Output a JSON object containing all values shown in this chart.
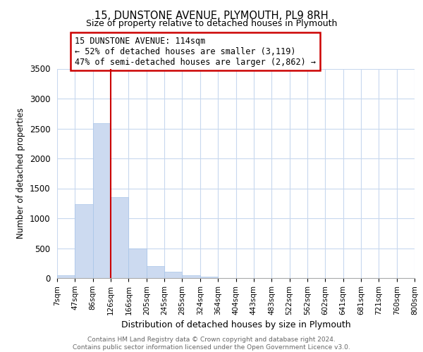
{
  "title": "15, DUNSTONE AVENUE, PLYMOUTH, PL9 8RH",
  "subtitle": "Size of property relative to detached houses in Plymouth",
  "xlabel": "Distribution of detached houses by size in Plymouth",
  "ylabel": "Number of detached properties",
  "bar_color": "#ccdaf0",
  "bar_edge_color": "#a8c4e8",
  "tick_labels": [
    "7sqm",
    "47sqm",
    "86sqm",
    "126sqm",
    "166sqm",
    "205sqm",
    "245sqm",
    "285sqm",
    "324sqm",
    "364sqm",
    "404sqm",
    "443sqm",
    "483sqm",
    "522sqm",
    "562sqm",
    "602sqm",
    "641sqm",
    "681sqm",
    "721sqm",
    "760sqm",
    "800sqm"
  ],
  "bar_heights": [
    50,
    1230,
    2590,
    1350,
    500,
    200,
    110,
    45,
    20,
    0,
    0,
    0,
    0,
    0,
    0,
    0,
    0,
    0,
    0,
    0
  ],
  "ylim": [
    0,
    3500
  ],
  "yticks": [
    0,
    500,
    1000,
    1500,
    2000,
    2500,
    3000,
    3500
  ],
  "vline_x": 3.0,
  "annotation_text": "15 DUNSTONE AVENUE: 114sqm\n← 52% of detached houses are smaller (3,119)\n47% of semi-detached houses are larger (2,862) →",
  "annotation_box_color": "#ffffff",
  "annotation_box_edge_color": "#cc0000",
  "vline_color": "#cc0000",
  "footer_text": "Contains HM Land Registry data © Crown copyright and database right 2024.\nContains public sector information licensed under the Open Government Licence v3.0.",
  "background_color": "#ffffff",
  "grid_color": "#c8d8ee"
}
